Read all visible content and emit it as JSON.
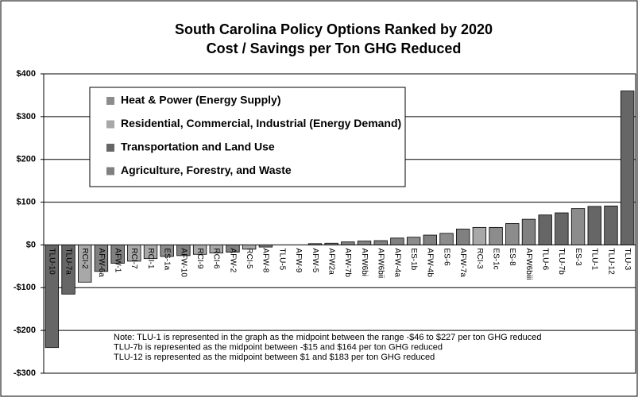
{
  "chart_data": {
    "type": "bar",
    "title": [
      "South Carolina Policy Options Ranked by 2020",
      "Cost / Savings per Ton GHG Reduced"
    ],
    "categories": [
      "TLU-10",
      "TLU-7a",
      "RCI-2",
      "AFW-6a",
      "AFW-1",
      "RCI-7",
      "RCI-1",
      "ES-1a",
      "AFW-10",
      "RCI-9",
      "RCI-6",
      "AFW-2",
      "RCI-5",
      "AFW-8",
      "TLU-5",
      "AFW-9",
      "AFW-5",
      "AFW2a",
      "AFW-7b",
      "AFW6bi",
      "AFW6bii",
      "AFW-4a",
      "ES-1b",
      "AFW-4b",
      "ES-6",
      "AFW-7a",
      "RCI-3",
      "ES-1c",
      "ES-8",
      "AFW6biii",
      "TLU-6",
      "TLU-7b",
      "ES-3",
      "TLU-1",
      "TLU-12",
      "TLU-3"
    ],
    "series": [
      {
        "name": "Heat & Power (Energy Supply)",
        "color": "#8c8c8c",
        "values": [
          null,
          null,
          null,
          null,
          null,
          null,
          null,
          -27,
          null,
          null,
          null,
          null,
          null,
          null,
          null,
          null,
          null,
          null,
          null,
          null,
          null,
          null,
          18,
          null,
          27,
          null,
          null,
          41,
          50,
          null,
          null,
          null,
          85,
          null,
          null,
          null
        ]
      },
      {
        "name": "Residential, Commercial, Industrial (Energy Demand)",
        "color": "#a8a8a8",
        "values": [
          null,
          null,
          -87,
          null,
          null,
          -38,
          -32,
          null,
          null,
          -22,
          -19,
          null,
          -10,
          null,
          null,
          null,
          null,
          null,
          null,
          null,
          null,
          null,
          null,
          null,
          null,
          null,
          41,
          null,
          null,
          null,
          null,
          null,
          null,
          null,
          null,
          null
        ]
      },
      {
        "name": "Transportation and Land Use",
        "color": "#666666",
        "values": [
          -240,
          -115,
          null,
          null,
          null,
          null,
          null,
          null,
          null,
          null,
          null,
          null,
          null,
          null,
          0,
          null,
          null,
          null,
          null,
          null,
          null,
          null,
          null,
          null,
          null,
          null,
          null,
          null,
          null,
          null,
          70,
          75,
          null,
          90,
          91,
          360
        ]
      },
      {
        "name": "Agriculture, Forestry, and Waste",
        "color": "#808080",
        "values": [
          null,
          null,
          null,
          -62,
          -43,
          null,
          null,
          null,
          -25,
          null,
          null,
          -17,
          null,
          -5,
          null,
          0,
          3,
          4,
          7,
          9,
          10,
          16,
          null,
          23,
          null,
          37,
          null,
          null,
          null,
          60,
          null,
          null,
          null,
          null,
          null,
          null
        ]
      }
    ],
    "ylim": [
      -300,
      400
    ],
    "yticks": [
      {
        "value": -300,
        "label": "-$300"
      },
      {
        "value": -200,
        "label": "-$200"
      },
      {
        "value": -100,
        "label": "-$100"
      },
      {
        "value": 0,
        "label": "$0"
      },
      {
        "value": 100,
        "label": "$100"
      },
      {
        "value": 200,
        "label": "$200"
      },
      {
        "value": 300,
        "label": "$300"
      },
      {
        "value": 400,
        "label": "$400"
      }
    ],
    "grid": true,
    "annotations": [
      "Note: TLU-1 is represented in the graph as the midpoint between the range -$46 to $227 per ton GHG reduced",
      "TLU-7b is represented as the midpoint between -$15 and $164 per ton GHG reduced",
      "TLU-12 is represented as the midpoint between $1 and $183 per ton GHG reduced"
    ]
  }
}
